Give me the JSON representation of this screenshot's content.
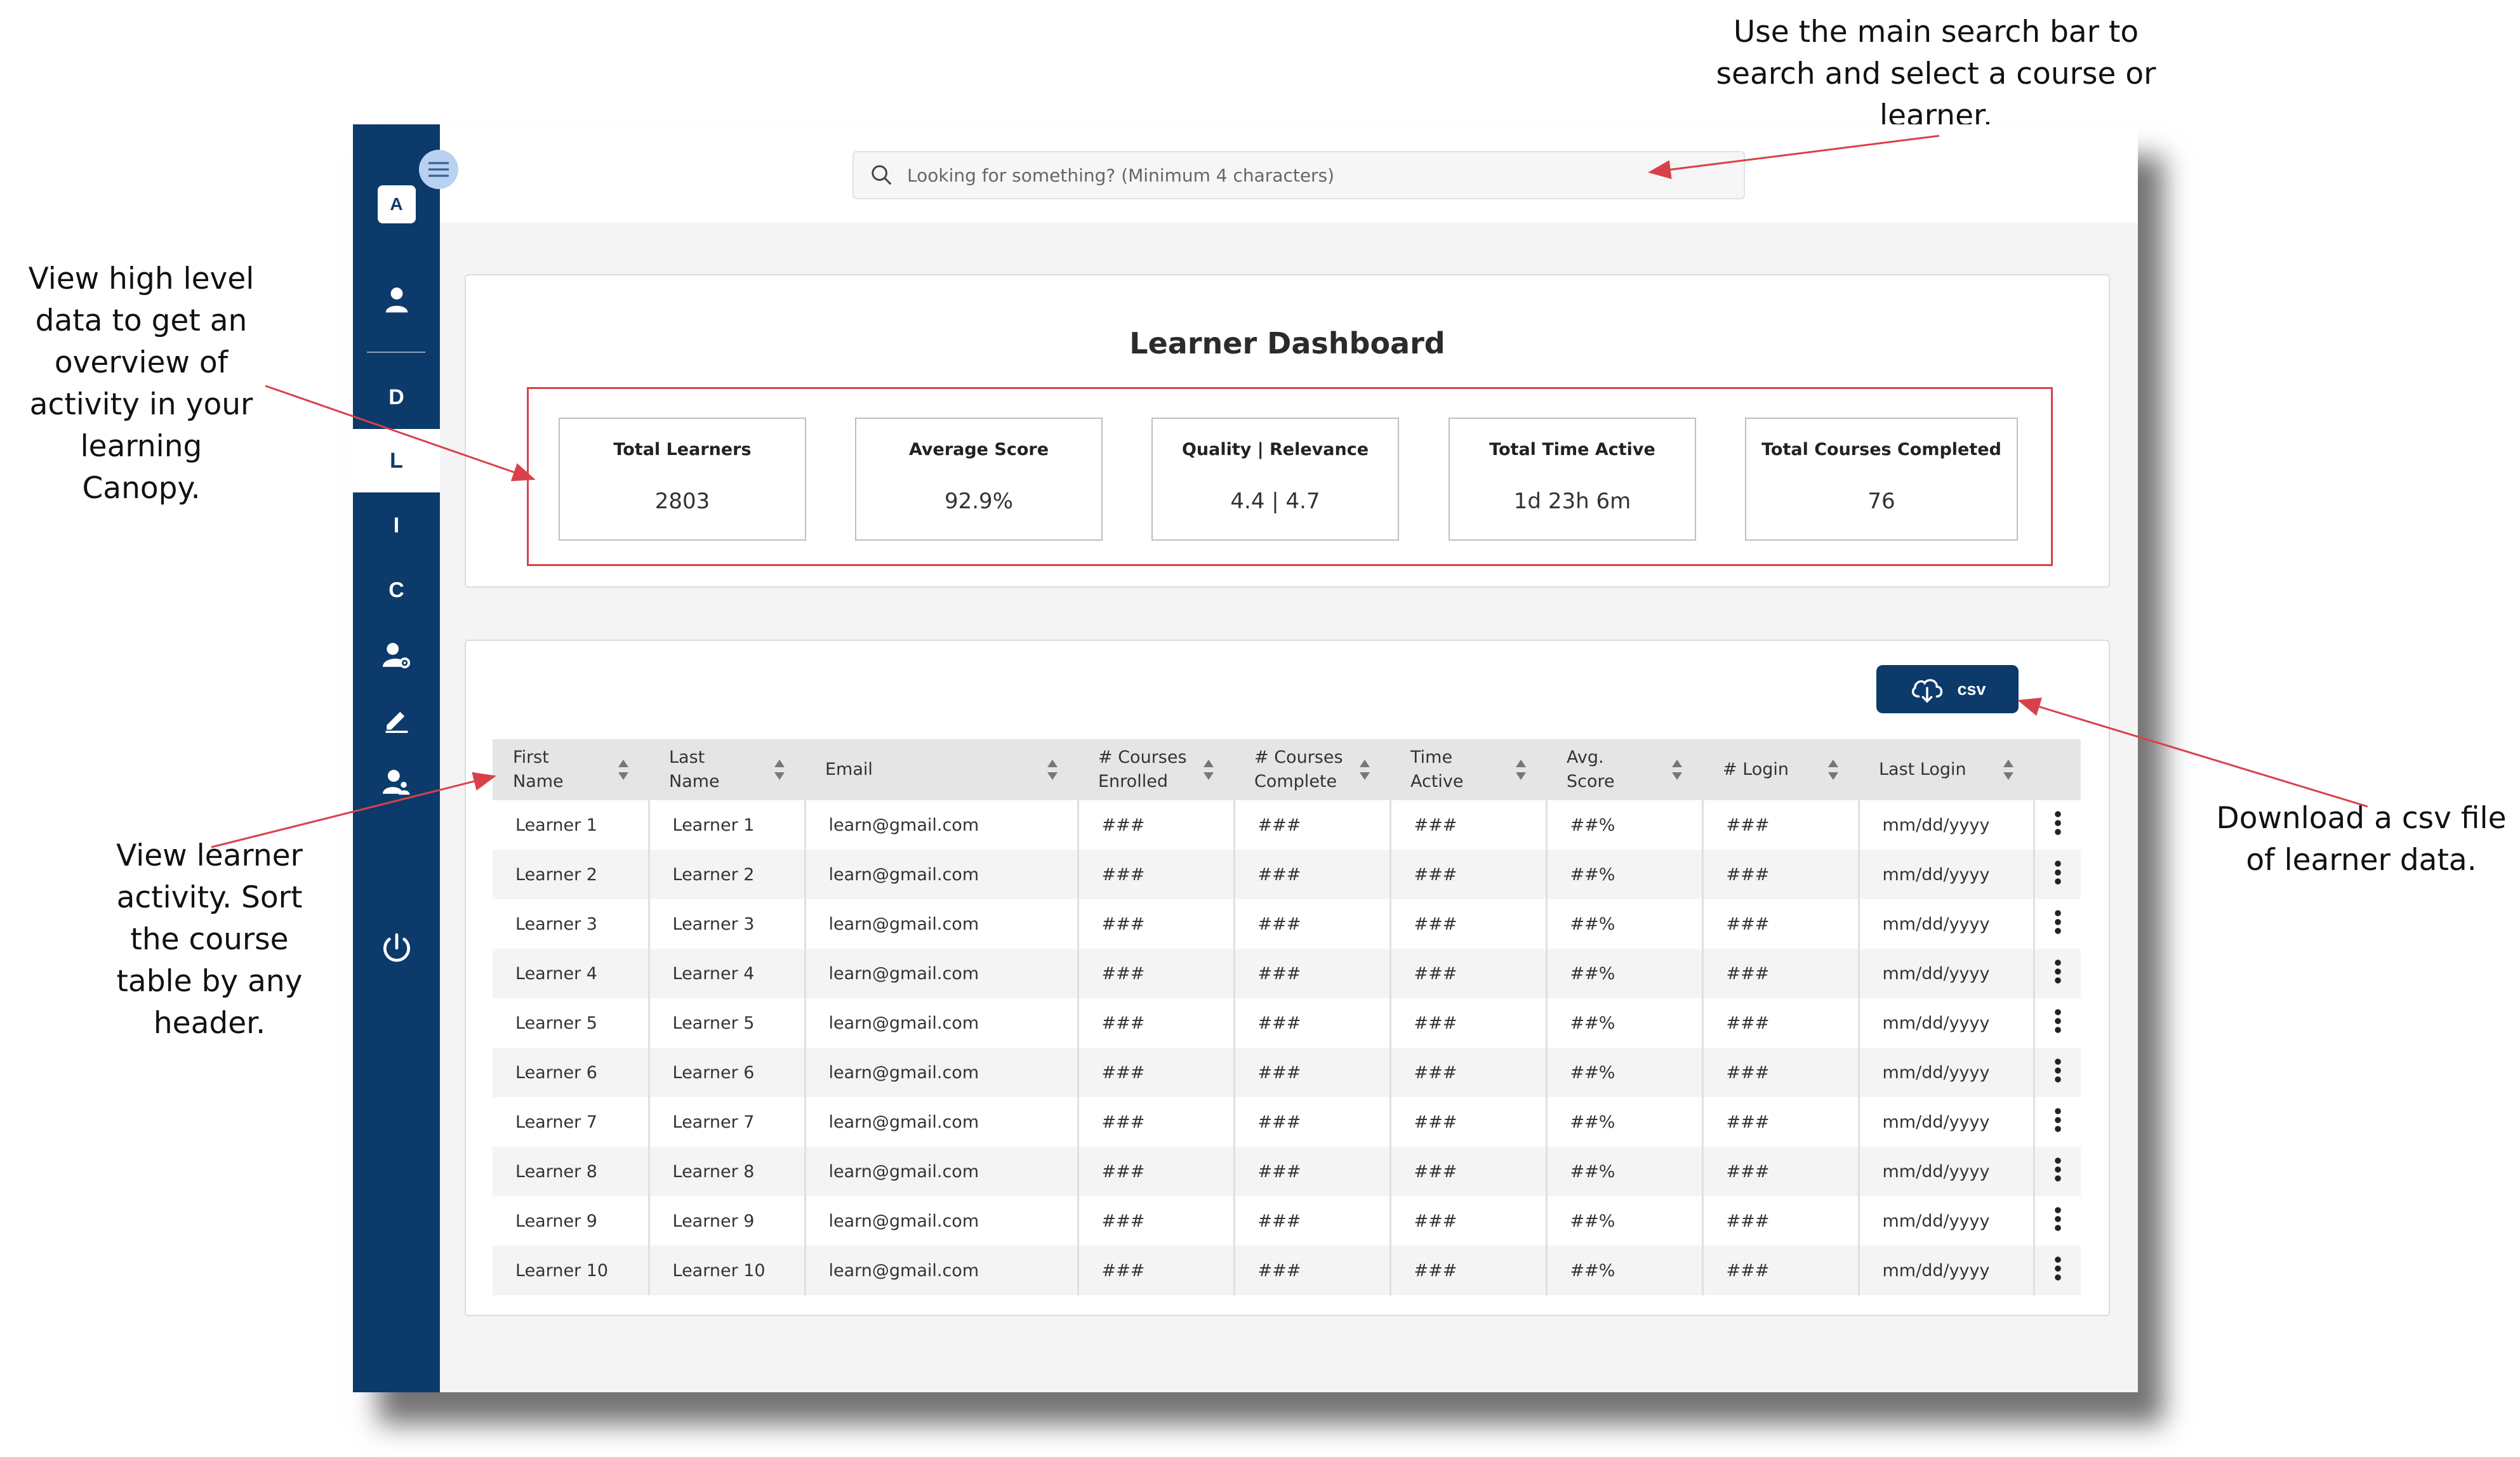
{
  "callouts": {
    "search": "Use the main search bar to search and select a course or learner.",
    "overview": "View high level data to get an overview of activity in your learning Canopy.",
    "learner": "View learner activity. Sort the course table by any header.",
    "csv": "Download a csv file of learner data."
  },
  "sidebar": {
    "items": [
      {
        "label": "A",
        "active": false
      },
      {
        "icon": "user-icon"
      },
      {
        "label": "D",
        "active": false
      },
      {
        "label": "L",
        "active": true
      },
      {
        "label": "I",
        "active": false
      },
      {
        "label": "C",
        "active": false
      },
      {
        "icon": "user-settings-icon"
      },
      {
        "icon": "pencil-icon"
      },
      {
        "icon": "user-group-icon"
      },
      {
        "icon": "power-icon"
      }
    ],
    "accent": "#0c3a6b"
  },
  "search": {
    "placeholder": "Looking for something? (Minimum 4 characters)"
  },
  "dashboard": {
    "title": "Learner Dashboard",
    "stats": [
      {
        "label": "Total Learners",
        "value": "2803"
      },
      {
        "label": "Average Score",
        "value": "92.9%"
      },
      {
        "label": "Quality | Relevance",
        "value": "4.4 | 4.7"
      },
      {
        "label": "Total Time Active",
        "value": "1d 23h 6m"
      },
      {
        "label": "Total Courses Completed",
        "value": "76"
      }
    ]
  },
  "csv_button": {
    "label": "csv"
  },
  "table": {
    "headers": [
      [
        "First",
        "Name"
      ],
      [
        "Last",
        "Name"
      ],
      [
        "Email"
      ],
      [
        "# Courses",
        "Enrolled"
      ],
      [
        "# Courses",
        "Complete"
      ],
      [
        "Time",
        "Active"
      ],
      [
        "Avg.",
        "Score"
      ],
      [
        "# Login"
      ],
      [
        "Last Login"
      ]
    ],
    "rows": [
      [
        "Learner 1",
        "Learner 1",
        "learn@gmail.com",
        "###",
        "###",
        "###",
        "##%",
        "###",
        "mm/dd/yyyy"
      ],
      [
        "Learner 2",
        "Learner 2",
        "learn@gmail.com",
        "###",
        "###",
        "###",
        "##%",
        "###",
        "mm/dd/yyyy"
      ],
      [
        "Learner 3",
        "Learner 3",
        "learn@gmail.com",
        "###",
        "###",
        "###",
        "##%",
        "###",
        "mm/dd/yyyy"
      ],
      [
        "Learner 4",
        "Learner 4",
        "learn@gmail.com",
        "###",
        "###",
        "###",
        "##%",
        "###",
        "mm/dd/yyyy"
      ],
      [
        "Learner 5",
        "Learner 5",
        "learn@gmail.com",
        "###",
        "###",
        "###",
        "##%",
        "###",
        "mm/dd/yyyy"
      ],
      [
        "Learner 6",
        "Learner 6",
        "learn@gmail.com",
        "###",
        "###",
        "###",
        "##%",
        "###",
        "mm/dd/yyyy"
      ],
      [
        "Learner 7",
        "Learner 7",
        "learn@gmail.com",
        "###",
        "###",
        "###",
        "##%",
        "###",
        "mm/dd/yyyy"
      ],
      [
        "Learner 8",
        "Learner 8",
        "learn@gmail.com",
        "###",
        "###",
        "###",
        "##%",
        "###",
        "mm/dd/yyyy"
      ],
      [
        "Learner 9",
        "Learner 9",
        "learn@gmail.com",
        "###",
        "###",
        "###",
        "##%",
        "###",
        "mm/dd/yyyy"
      ],
      [
        "Learner 10",
        "Learner 10",
        "learn@gmail.com",
        "###",
        "###",
        "###",
        "##%",
        "###",
        "mm/dd/yyyy"
      ]
    ]
  },
  "colors": {
    "annotation": "#d9414a",
    "brand": "#0c3a6b",
    "menu_toggle": "#b8d1f0"
  }
}
